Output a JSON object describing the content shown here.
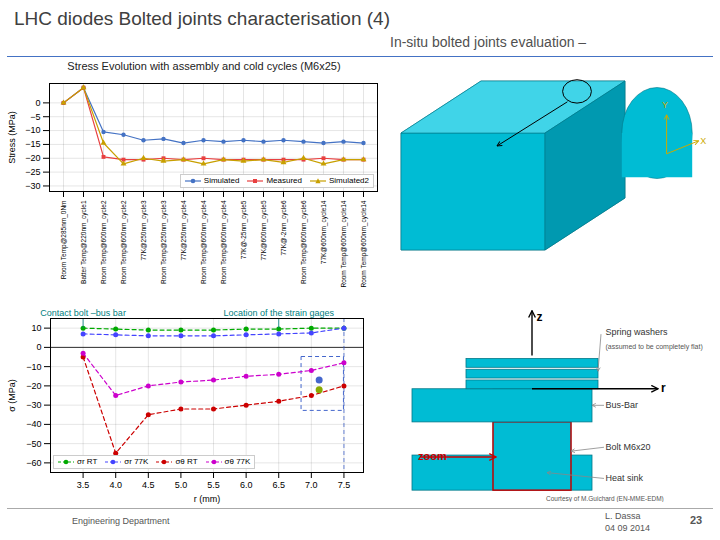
{
  "title": "LHC diodes Bolted joints characterisation (4)",
  "subtitle": "In-situ bolted joints evaluation –",
  "footer": {
    "left": "Engineering Department",
    "name": "L. Dassa",
    "date": "04 09 2014",
    "page": "23"
  },
  "diagram_labels": {
    "block_axes": [
      "X",
      "Y"
    ],
    "cross_section_axes": [
      "z",
      "r"
    ],
    "spring_washers": "Spring washers",
    "spring_washers_note": "(assumed to be completely flat)",
    "bus_bar": "Bus-Bar",
    "bolt": "Bolt M6x20",
    "heat_sink": "Heat sink",
    "zoom": "zoom",
    "courtesy": "Courtesy of M.Guichard (EN-MME-EDM)"
  },
  "chart_data": [
    {
      "type": "line",
      "title": "Stress Evolution with assembly and cold cycles (M6x25)",
      "ylabel": "Stress (MPa)",
      "categories": [
        "Room Temp@285nm_0Nm",
        "Batter Temp@220nm_cycle1",
        "Room Temp@600nm_cycle2",
        "Room Temp@600nm_cycle2",
        "77K@250nm_cycle3",
        "Room Temp@250nm_cycle3",
        "77K@250nm_cycle4",
        "Room Temp@600nm_cycle4",
        "Room Temp@600nm_cycle4",
        "77K@-25nm_cycle5",
        "77K@600nm_cycle5",
        "77K@-2nm_cycle6",
        "Room Temp@600nm_cycle6",
        "77K@600nm_cycle14",
        "Room Temp@600nm_cycle14",
        "Room Temp@600nm_cycle14"
      ],
      "series": [
        {
          "name": "Simulated",
          "color": "#4472c4",
          "marker": "circle",
          "line_style": "solid",
          "values": [
            0.0,
            5.5,
            -10.5,
            -11.5,
            -13.5,
            -13.0,
            -14.5,
            -13.5,
            -14.0,
            -13.5,
            -14.0,
            -13.5,
            -14.0,
            -14.5,
            -14.0,
            -14.5
          ]
        },
        {
          "name": "Measured",
          "color": "#e84040",
          "marker": "square",
          "line_style": "solid",
          "values": [
            0.0,
            5.5,
            -19.5,
            -20.5,
            -20.5,
            -20.0,
            -20.5,
            -20.0,
            -20.5,
            -20.5,
            -20.5,
            -20.5,
            -20.5,
            -20.0,
            -20.5,
            -20.5
          ]
        },
        {
          "name": "Simulated2",
          "color": "#c8a000",
          "marker": "triangle",
          "line_style": "solid",
          "values": [
            0.0,
            5.5,
            -14.5,
            -22.0,
            -20.0,
            -21.0,
            -20.5,
            -22.0,
            -20.5,
            -21.0,
            -20.5,
            -21.5,
            -20.0,
            -22.0,
            -20.5,
            -20.5
          ]
        }
      ],
      "ylim": [
        -32,
        7
      ],
      "yticks": [
        0,
        -5,
        -10,
        -15,
        -20,
        -25,
        -30
      ],
      "grid": true,
      "legend": "lower right"
    },
    {
      "type": "line",
      "xlabel": "r (mm)",
      "ylabel": "σ (MPa)",
      "series": [
        {
          "name": "σr RT",
          "color": "#00aa00",
          "marker": "circle",
          "line_style": "dashed",
          "x": [
            3.5,
            4.0,
            4.5,
            5.0,
            5.5,
            6.0,
            6.5,
            7.0,
            7.5
          ],
          "values": [
            10.0,
            9.5,
            9.0,
            9.0,
            9.0,
            9.5,
            9.5,
            10.0,
            10.0
          ]
        },
        {
          "name": "σr 77K",
          "color": "#4444ff",
          "marker": "circle",
          "line_style": "dashed",
          "x": [
            3.5,
            4.0,
            4.5,
            5.0,
            5.5,
            6.0,
            6.5,
            7.0,
            7.5
          ],
          "values": [
            7.0,
            6.5,
            6.0,
            6.0,
            6.0,
            6.5,
            7.0,
            7.5,
            10.0
          ]
        },
        {
          "name": "σθ RT",
          "color": "#cc0000",
          "marker": "circle",
          "line_style": "dashed",
          "x": [
            3.5,
            4.0,
            4.5,
            5.0,
            5.5,
            6.0,
            6.5,
            7.0,
            7.5
          ],
          "values": [
            -5.0,
            -55.0,
            -35.0,
            -32.0,
            -32.0,
            -30.0,
            -28.0,
            -25.0,
            -20.0
          ]
        },
        {
          "name": "σθ 77K",
          "color": "#cc00cc",
          "marker": "circle",
          "line_style": "dashed",
          "x": [
            3.5,
            4.0,
            4.5,
            5.0,
            5.5,
            6.0,
            6.5,
            7.0,
            7.5
          ],
          "values": [
            -3.0,
            -25.0,
            -20.0,
            -18.0,
            -17.0,
            -15.0,
            -14.0,
            -12.0,
            -8.0
          ]
        }
      ],
      "xlim": [
        3.0,
        7.8
      ],
      "ylim": [
        -65,
        15
      ],
      "xticks": [
        3.5,
        {
          "value": 4,
          "label": "4.0"
        },
        4.5,
        {
          "value": 5,
          "label": "5.0"
        },
        5.5,
        {
          "value": 6,
          "label": "6.0"
        },
        6.5,
        {
          "value": 7,
          "label": "7.0"
        },
        7.5
      ],
      "yticks": [
        10,
        0,
        -10,
        -20,
        -30,
        -40,
        -50,
        -60
      ],
      "grid": true,
      "legend": "lower left",
      "reference_lines": [
        {
          "axis": "y",
          "value": 0,
          "color": "#000000",
          "line_style": "solid"
        },
        {
          "axis": "x",
          "value": 7.5,
          "color": "#4466cc",
          "line_style": "dashed"
        }
      ],
      "zoom_box": {
        "x": [
          6.85,
          7.5
        ],
        "y": [
          -33,
          -5
        ],
        "color": "#4466cc",
        "line_style": "dashed"
      },
      "points": [
        {
          "x": 7.12,
          "y": -17,
          "color": "#4466cc"
        },
        {
          "x": 7.12,
          "y": -22,
          "color": "#88aa00"
        }
      ],
      "annotations": [
        {
          "text": "Contact bolt –bus bar",
          "x": 3.5,
          "y": 10,
          "color": "#008080"
        },
        {
          "text": "Location of the strain gages",
          "x": 6.5,
          "y": 10,
          "color": "#008080"
        }
      ]
    }
  ]
}
